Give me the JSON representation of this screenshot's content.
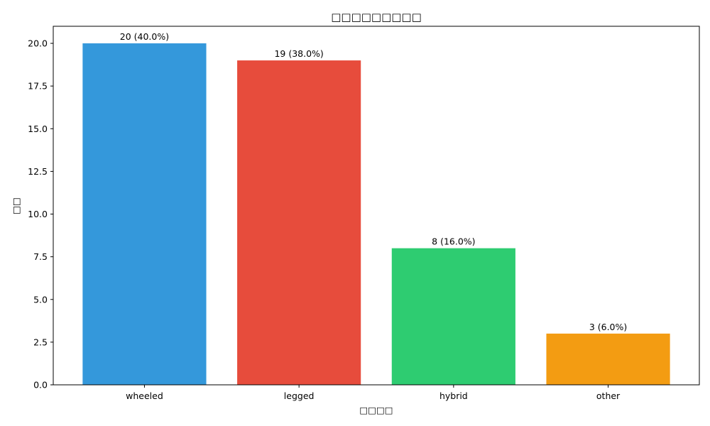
{
  "chart_data": {
    "type": "bar",
    "title": "□□□□□□□□□",
    "xlabel": "□□□□",
    "ylabel": "□□",
    "categories": [
      "wheeled",
      "legged",
      "hybrid",
      "other"
    ],
    "values": [
      20,
      19,
      8,
      3
    ],
    "value_labels": [
      "20 (40.0%)",
      "19 (38.0%)",
      "8 (16.0%)",
      "3 (6.0%)"
    ],
    "colors": [
      "#3498db",
      "#e74c3c",
      "#2ecc71",
      "#f39c12"
    ],
    "ylim": [
      0,
      21
    ],
    "yticks": [
      0.0,
      2.5,
      5.0,
      7.5,
      10.0,
      12.5,
      15.0,
      17.5,
      20.0
    ],
    "ytick_labels": [
      "0.0",
      "2.5",
      "5.0",
      "7.5",
      "10.0",
      "12.5",
      "15.0",
      "17.5",
      "20.0"
    ],
    "grid": false,
    "legend": "none"
  }
}
